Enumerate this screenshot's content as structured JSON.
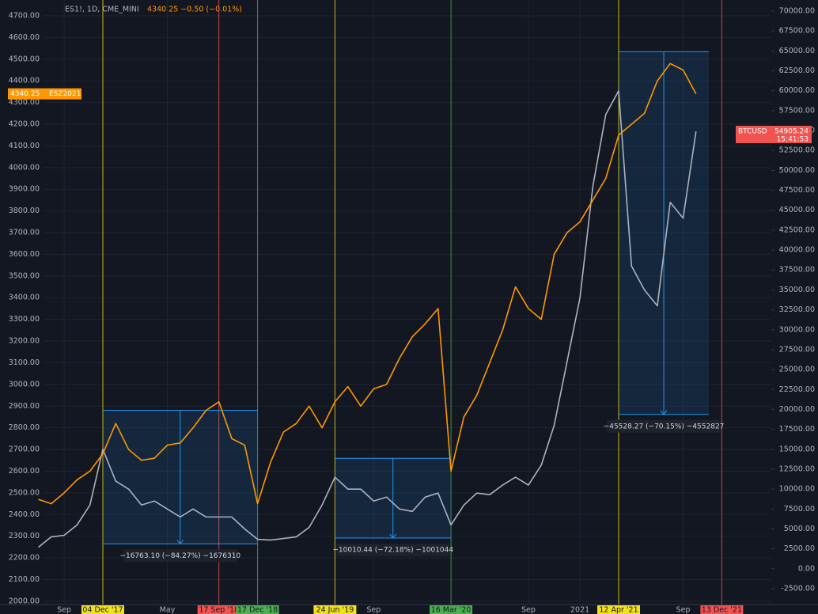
{
  "chart_data": {
    "type": "line",
    "symbol": "ES1!, 1D, CME_MINI",
    "quote": "4340.25 −0.50 (−0.01%)",
    "grid": true,
    "categories": [
      null,
      null,
      "Sep",
      null,
      null,
      "04 Dec '17",
      null,
      null,
      null,
      null,
      "May",
      null,
      null,
      null,
      "17 Sep '18",
      null,
      null,
      "17 Dec '18",
      null,
      null,
      null,
      null,
      null,
      "24 Jun '19",
      null,
      null,
      "Sep",
      null,
      null,
      null,
      null,
      null,
      "16 Mar '20",
      null,
      null,
      null,
      null,
      null,
      "Sep",
      null,
      null,
      null,
      "2021",
      null,
      null,
      "12 Apr '21",
      null,
      null,
      null,
      null,
      "Sep",
      null,
      null,
      "13 Dec '21",
      null,
      null,
      null
    ],
    "event_colors": [
      null,
      null,
      null,
      null,
      null,
      "#f2e21d",
      null,
      null,
      null,
      null,
      null,
      null,
      null,
      null,
      "#f05350",
      null,
      null,
      "#4caf50",
      null,
      null,
      null,
      null,
      null,
      "#f2e21d",
      null,
      null,
      null,
      null,
      null,
      null,
      null,
      null,
      "#4caf50",
      null,
      null,
      null,
      null,
      null,
      null,
      null,
      null,
      null,
      null,
      null,
      null,
      "#f2e21d",
      null,
      null,
      null,
      null,
      null,
      null,
      null,
      "#f05350",
      null,
      null,
      null
    ],
    "series": [
      {
        "name": "ESZ2021",
        "color": "#ff9800",
        "axis": "y",
        "values": [
          2470,
          2450,
          2500,
          2560,
          2600,
          2680,
          2820,
          2700,
          2650,
          2660,
          2720,
          2730,
          2800,
          2880,
          2920,
          2750,
          2720,
          2450,
          2640,
          2780,
          2820,
          2900,
          2800,
          2920,
          2990,
          2900,
          2980,
          3000,
          3120,
          3220,
          3280,
          3350,
          2600,
          2850,
          2950,
          3100,
          3250,
          3450,
          3350,
          3300,
          3600,
          3700,
          3750,
          3850,
          3950,
          4150,
          4200,
          4250,
          4400,
          4480,
          4450,
          4340.25,
          null,
          null,
          null,
          null,
          null
        ],
        "last_label": "4340.25"
      },
      {
        "name": "BTCUSD",
        "color": "#aeb2bd",
        "axis": "y2",
        "values": [
          2700,
          4000,
          4200,
          5500,
          8000,
          15000,
          11000,
          10000,
          8000,
          8500,
          7500,
          6500,
          7500,
          6500,
          6500,
          6500,
          5000,
          3700,
          3600,
          3800,
          4000,
          5200,
          8000,
          11500,
          10000,
          10000,
          8500,
          9000,
          7500,
          7200,
          9000,
          9500,
          5500,
          8000,
          9500,
          9300,
          10500,
          11500,
          10500,
          13000,
          18000,
          26000,
          34000,
          48000,
          57000,
          60000,
          38000,
          35000,
          33000,
          46000,
          44000,
          54905.24,
          null,
          null,
          null,
          null,
          null
        ],
        "last_label": "54905.24",
        "countdown": "15:41:53"
      }
    ],
    "measures": [
      {
        "label": "−16763.10 (−84.27%) −1676310",
        "high": 19892,
        "low": 3129
      },
      {
        "label": "−10010.44 (−72.18%) −1001044",
        "high": 13868,
        "low": 3858
      },
      {
        "label": "−45528.27 (−70.15%) −4552827",
        "high": 64901,
        "low": 19373
      }
    ],
    "ylim": [
      1985,
      4773
    ],
    "yticks": [
      {
        "value": 2000,
        "label": "2000.00"
      },
      {
        "value": 2100,
        "label": "2100.00"
      },
      {
        "value": 2200,
        "label": "2200.00"
      },
      {
        "value": 2300,
        "label": "2300.00"
      },
      {
        "value": 2400,
        "label": "2400.00"
      },
      {
        "value": 2500,
        "label": "2500.00"
      },
      {
        "value": 2600,
        "label": "2600.00"
      },
      {
        "value": 2700,
        "label": "2700.00"
      },
      {
        "value": 2800,
        "label": "2800.00"
      },
      {
        "value": 2900,
        "label": "2900.00"
      },
      {
        "value": 3000,
        "label": "3000.00"
      },
      {
        "value": 3100,
        "label": "3100.00"
      },
      {
        "value": 3200,
        "label": "3200.00"
      },
      {
        "value": 3300,
        "label": "3300.00"
      },
      {
        "value": 3400,
        "label": "3400.00"
      },
      {
        "value": 3500,
        "label": "3500.00"
      },
      {
        "value": 3600,
        "label": "3600.00"
      },
      {
        "value": 3700,
        "label": "3700.00"
      },
      {
        "value": 3800,
        "label": "3800.00"
      },
      {
        "value": 3900,
        "label": "3900.00"
      },
      {
        "value": 4000,
        "label": "4000.00"
      },
      {
        "value": 4100,
        "label": "4100.00"
      },
      {
        "value": 4200,
        "label": "4200.00"
      },
      {
        "value": 4300,
        "label": "4300.00"
      },
      {
        "value": 4400,
        "label": "4400.00"
      },
      {
        "value": 4500,
        "label": "4500.00"
      },
      {
        "value": 4600,
        "label": "4600.00"
      },
      {
        "value": 4700,
        "label": "4700.00"
      }
    ],
    "y2lim": [
      -4486,
      71390
    ],
    "y2ticks": [
      {
        "value": -2500,
        "label": "-2500.00"
      },
      {
        "value": 0,
        "label": "0.00"
      },
      {
        "value": 2500,
        "label": "2500.00"
      },
      {
        "value": 5000,
        "label": "5000.00"
      },
      {
        "value": 7500,
        "label": "7500.00"
      },
      {
        "value": 10000,
        "label": "10000.00"
      },
      {
        "value": 12500,
        "label": "12500.00"
      },
      {
        "value": 15000,
        "label": "15000.00"
      },
      {
        "value": 17500,
        "label": "17500.00"
      },
      {
        "value": 20000,
        "label": "20000.00"
      },
      {
        "value": 22500,
        "label": "22500.00"
      },
      {
        "value": 25000,
        "label": "25000.00"
      },
      {
        "value": 27500,
        "label": "27500.00"
      },
      {
        "value": 30000,
        "label": "30000.00"
      },
      {
        "value": 32500,
        "label": "32500.00"
      },
      {
        "value": 35000,
        "label": "35000.00"
      },
      {
        "value": 37500,
        "label": "37500.00"
      },
      {
        "value": 40000,
        "label": "40000.00"
      },
      {
        "value": 42500,
        "label": "42500.00"
      },
      {
        "value": 45000,
        "label": "45000.00"
      },
      {
        "value": 47500,
        "label": "47500.00"
      },
      {
        "value": 50000,
        "label": "50000.00"
      },
      {
        "value": 52500,
        "label": "52500.00"
      },
      {
        "value": 55000,
        "label": "55000.00"
      },
      {
        "value": 57500,
        "label": "57500.00"
      },
      {
        "value": 60000,
        "label": "60000.00"
      },
      {
        "value": 62500,
        "label": "62500.00"
      },
      {
        "value": 65000,
        "label": "65000.00"
      },
      {
        "value": 67500,
        "label": "67500.00"
      },
      {
        "value": 70000,
        "label": "70000.00"
      }
    ]
  }
}
